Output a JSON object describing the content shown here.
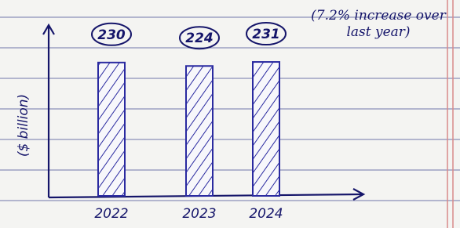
{
  "chart_data": {
    "type": "bar",
    "y_label": "($ billion)",
    "annotation": "(7.2% increase over last year)",
    "categories": [
      "2022",
      "2023",
      "2024"
    ],
    "values": [
      230,
      224,
      231
    ],
    "color": "#2a2aa0",
    "ylim": [
      0,
      250
    ]
  }
}
